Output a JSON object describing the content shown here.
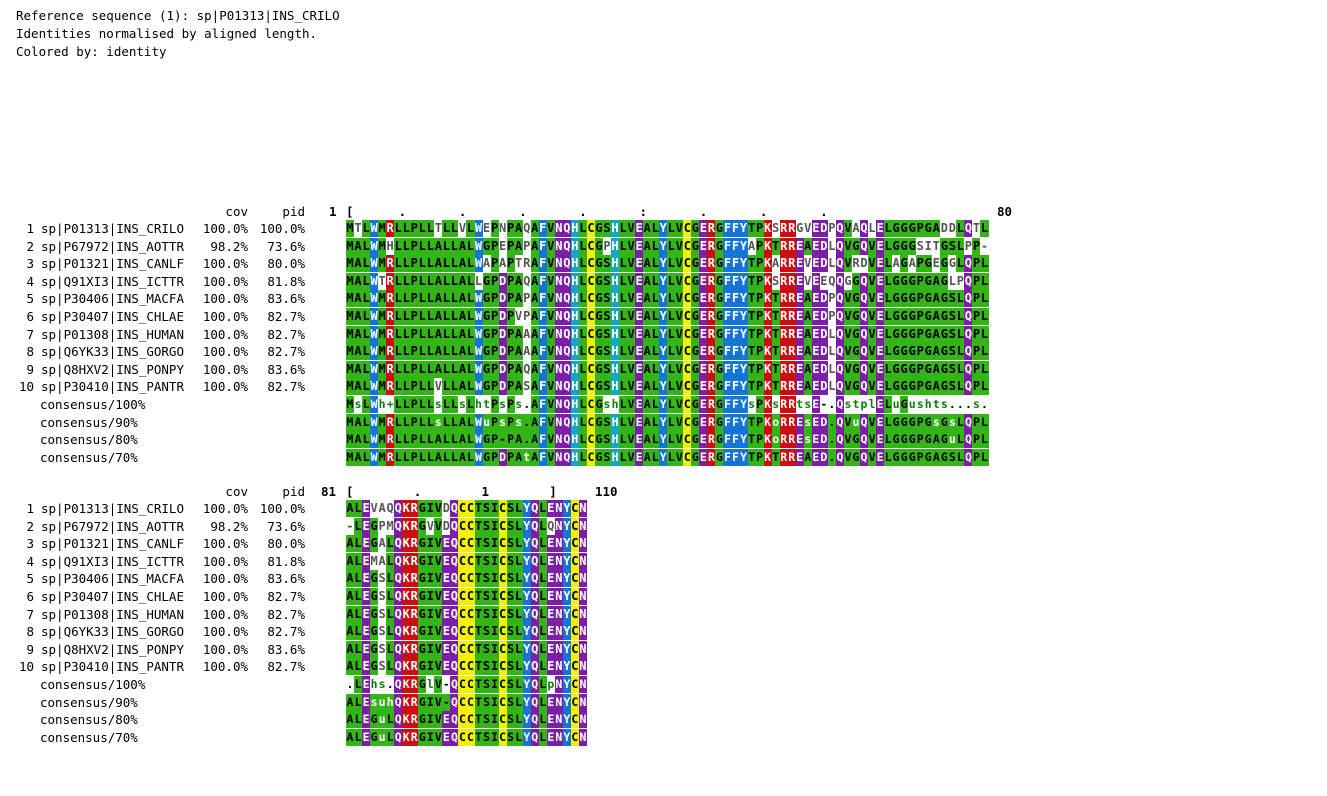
{
  "header": {
    "reference_line": "Reference sequence (1): sp|P01313|INS_CRILO",
    "normalisation_line": "Identities normalised by aligned length.",
    "coloring_line": "Colored by: identity"
  },
  "columns": {
    "cov": "cov",
    "pid": "pid"
  },
  "colors": {
    "green": "#33b417",
    "dark_green": "#0e7c0e",
    "red": "#cc0e11",
    "blue": "#1575d4",
    "cyan": "#14a7c5",
    "purple": "#7d1fa6",
    "yellow": "#f2f200",
    "gray": "#8a8a8a"
  },
  "blocks": [
    {
      "ruler": {
        "start": "1",
        "marks": "[      .       .       .       .       :       .       .       .",
        "end": "80"
      },
      "rows": [
        {
          "num": "1",
          "name": "sp|P01313|INS_CRILO",
          "cov": "100.0%",
          "pid": "100.0%",
          "seq": "MTLWMRLLPLLTLLVLWEPNPAQAFVNQHLCGSHLVEALYLVCGERGFFYTPKSRRGVEDPQVAQLELGGGPGADDLQTL"
        },
        {
          "num": "2",
          "name": "sp|P67972|INS_AOTTR",
          "cov": "98.2%",
          "pid": "73.6%",
          "seq": "MALWMHLLPLLALLALWGPEPAPAFVNQHLCGPHLVEALYLVCGERGFFYAPKTRREAEDLQVGQVELGGGSITGSLPP-"
        },
        {
          "num": "3",
          "name": "sp|P01321|INS_CANLF",
          "cov": "100.0%",
          "pid": "80.0%",
          "seq": "MALWMRLLPLLALLALWAPAPTRAFVNQHLCGSHLVEALYLVCGERGFFYTPKARREVEDLQVRDVELAGAPGEGGLQPL"
        },
        {
          "num": "4",
          "name": "sp|Q91XI3|INS_ICTTR",
          "cov": "100.0%",
          "pid": "81.8%",
          "seq": "MALWTRLLPLLALLALLGPDPAQAFVNQHLCGSHLVEALYLVCGERGFFYTPKSRREVEEQQGGQVELGGGPGAGLPQPL"
        },
        {
          "num": "5",
          "name": "sp|P30406|INS_MACFA",
          "cov": "100.0%",
          "pid": "83.6%",
          "seq": "MALWMRLLPLLALLALWGPDPAPAFVNQHLCGSHLVEALYLVCGERGFFYTPKTRREAEDPQVGQVELGGGPGAGSLQPL"
        },
        {
          "num": "6",
          "name": "sp|P30407|INS_CHLAE",
          "cov": "100.0%",
          "pid": "82.7%",
          "seq": "MALWMRLLPLLALLALWGPDPVPAFVNQHLCGSHLVEALYLVCGERGFFYTPKTRREAEDPQVGQVELGGGPGAGSLQPL"
        },
        {
          "num": "7",
          "name": "sp|P01308|INS_HUMAN",
          "cov": "100.0%",
          "pid": "82.7%",
          "seq": "MALWMRLLPLLALLALWGPDPAAAFVNQHLCGSHLVEALYLVCGERGFFYTPKTRREAEDLQVGQVELGGGPGAGSLQPL"
        },
        {
          "num": "8",
          "name": "sp|Q6YK33|INS_GORGO",
          "cov": "100.0%",
          "pid": "82.7%",
          "seq": "MALWMRLLPLLALLALWGPDPAAAFVNQHLCGSHLVEALYLVCGERGFFYTPKTRREAEDLQVGQVELGGGPGAGSLQPL"
        },
        {
          "num": "9",
          "name": "sp|Q8HXV2|INS_PONPY",
          "cov": "100.0%",
          "pid": "83.6%",
          "seq": "MALWMRLLPLLALLALWGPDPAQAFVNQHLCGSHLVEALYLVCGERGFFYTPKTRREAEDLQVGQVELGGGPGAGSLQPL"
        },
        {
          "num": "10",
          "name": "sp|P30410|INS_PANTR",
          "cov": "100.0%",
          "pid": "82.7%",
          "seq": "MALWMRLLPLLVLLALWGPDPASAFVNQHLCGSHLVEALYLVCGERGFFYTPKTRREAEDLQVGQVELGGGPGAGSLQPL"
        }
      ],
      "consensus": [
        {
          "label": "consensus/100%",
          "seq": "MsLWh+LLPLLsLLsLhtPsPs.AFVNQHLCGshLVEALYLVCGERGFFYsPKsRRtsE-.QstplELuGushts...s."
        },
        {
          "label": "consensus/90%",
          "seq": "MALWMRLLPLLsLLALWuPsPs.AFVNQHLCGSHLVEALYLVCGERGFFYTPKoRREsED.QVuQVELGGGPGsGsLQPL"
        },
        {
          "label": "consensus/80%",
          "seq": "MALWMRLLPLLALLALWGP-PA.AFVNQHLCGSHLVEALYLVCGERGFFYTPKoRREsED.QVGQVELGGGPGAGuLQPL"
        },
        {
          "label": "consensus/70%",
          "seq": "MALWMRLLPLLALLALWGPDPAtAFVNQHLCGSHLVEALYLVCGERGFFYTPKTRREAED.QVGQVELGGGPGAGSLQPL"
        }
      ]
    },
    {
      "ruler": {
        "start": "81",
        "marks": "[        .        1        ]",
        "end": "110"
      },
      "rows": [
        {
          "num": "1",
          "name": "sp|P01313|INS_CRILO",
          "cov": "100.0%",
          "pid": "100.0%",
          "seq": "ALEVAQQKRGIVDQCCTSICSLYQLENYCN"
        },
        {
          "num": "2",
          "name": "sp|P67972|INS_AOTTR",
          "cov": "98.2%",
          "pid": "73.6%",
          "seq": "-LEGPMQKRGVVDQCCTSICSLYQLQNYCN"
        },
        {
          "num": "3",
          "name": "sp|P01321|INS_CANLF",
          "cov": "100.0%",
          "pid": "80.0%",
          "seq": "ALEGALQKRGIVEQCCTSICSLYQLENYCN"
        },
        {
          "num": "4",
          "name": "sp|Q91XI3|INS_ICTTR",
          "cov": "100.0%",
          "pid": "81.8%",
          "seq": "ALEMALQKRGIVEQCCTSICSLYQLENYCN"
        },
        {
          "num": "5",
          "name": "sp|P30406|INS_MACFA",
          "cov": "100.0%",
          "pid": "83.6%",
          "seq": "ALEGSLQKRGIVEQCCTSICSLYQLENYCN"
        },
        {
          "num": "6",
          "name": "sp|P30407|INS_CHLAE",
          "cov": "100.0%",
          "pid": "82.7%",
          "seq": "ALEGSLQKRGIVEQCCTSICSLYQLENYCN"
        },
        {
          "num": "7",
          "name": "sp|P01308|INS_HUMAN",
          "cov": "100.0%",
          "pid": "82.7%",
          "seq": "ALEGSLQKRGIVEQCCTSICSLYQLENYCN"
        },
        {
          "num": "8",
          "name": "sp|Q6YK33|INS_GORGO",
          "cov": "100.0%",
          "pid": "82.7%",
          "seq": "ALEGSLQKRGIVEQCCTSICSLYQLENYCN"
        },
        {
          "num": "9",
          "name": "sp|Q8HXV2|INS_PONPY",
          "cov": "100.0%",
          "pid": "83.6%",
          "seq": "ALEGSLQKRGIVEQCCTSICSLYQLENYCN"
        },
        {
          "num": "10",
          "name": "sp|P30410|INS_PANTR",
          "cov": "100.0%",
          "pid": "82.7%",
          "seq": "ALEGSLQKRGIVEQCCTSICSLYQLENYCN"
        }
      ],
      "consensus": [
        {
          "label": "consensus/100%",
          "seq": ".LEhs.QKRGlV-QCCTSICSLYQLpNYCN"
        },
        {
          "label": "consensus/90%",
          "seq": "ALEsuhQKRGIV-QCCTSICSLYQLENYCN"
        },
        {
          "label": "consensus/80%",
          "seq": "ALEGuLQKRGIVEQCCTSICSLYQLENYCN"
        },
        {
          "label": "consensus/70%",
          "seq": "ALEGuLQKRGIVEQCCTSICSLYQLENYCN"
        }
      ]
    }
  ]
}
